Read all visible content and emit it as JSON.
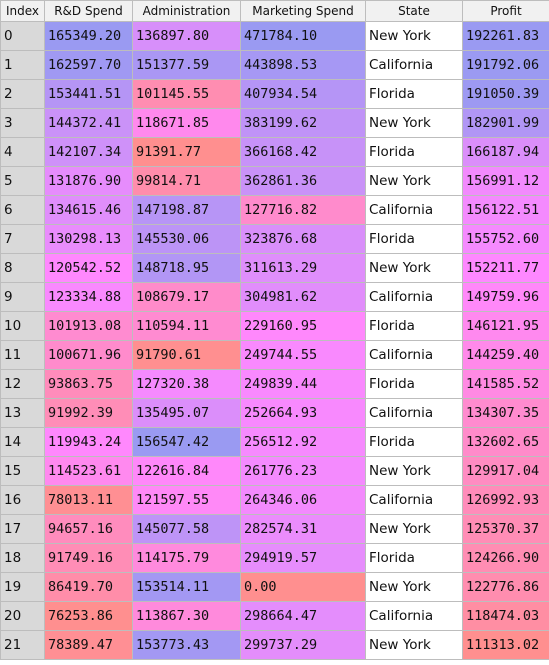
{
  "columns": [
    "Index",
    "R&D Spend",
    "Administration",
    "Marketing Spend",
    "State",
    "Profit"
  ],
  "rows": [
    {
      "index": "0",
      "rd": "165349.20",
      "admin": "136897.80",
      "marketing": "471784.10",
      "state": "New York",
      "profit": "192261.83"
    },
    {
      "index": "1",
      "rd": "162597.70",
      "admin": "151377.59",
      "marketing": "443898.53",
      "state": "California",
      "profit": "191792.06"
    },
    {
      "index": "2",
      "rd": "153441.51",
      "admin": "101145.55",
      "marketing": "407934.54",
      "state": "Florida",
      "profit": "191050.39"
    },
    {
      "index": "3",
      "rd": "144372.41",
      "admin": "118671.85",
      "marketing": "383199.62",
      "state": "New York",
      "profit": "182901.99"
    },
    {
      "index": "4",
      "rd": "142107.34",
      "admin": "91391.77",
      "marketing": "366168.42",
      "state": "Florida",
      "profit": "166187.94"
    },
    {
      "index": "5",
      "rd": "131876.90",
      "admin": "99814.71",
      "marketing": "362861.36",
      "state": "New York",
      "profit": "156991.12"
    },
    {
      "index": "6",
      "rd": "134615.46",
      "admin": "147198.87",
      "marketing": "127716.82",
      "state": "California",
      "profit": "156122.51"
    },
    {
      "index": "7",
      "rd": "130298.13",
      "admin": "145530.06",
      "marketing": "323876.68",
      "state": "Florida",
      "profit": "155752.60"
    },
    {
      "index": "8",
      "rd": "120542.52",
      "admin": "148718.95",
      "marketing": "311613.29",
      "state": "New York",
      "profit": "152211.77"
    },
    {
      "index": "9",
      "rd": "123334.88",
      "admin": "108679.17",
      "marketing": "304981.62",
      "state": "California",
      "profit": "149759.96"
    },
    {
      "index": "10",
      "rd": "101913.08",
      "admin": "110594.11",
      "marketing": "229160.95",
      "state": "Florida",
      "profit": "146121.95"
    },
    {
      "index": "11",
      "rd": "100671.96",
      "admin": "91790.61",
      "marketing": "249744.55",
      "state": "California",
      "profit": "144259.40"
    },
    {
      "index": "12",
      "rd": "93863.75",
      "admin": "127320.38",
      "marketing": "249839.44",
      "state": "Florida",
      "profit": "141585.52"
    },
    {
      "index": "13",
      "rd": "91992.39",
      "admin": "135495.07",
      "marketing": "252664.93",
      "state": "California",
      "profit": "134307.35"
    },
    {
      "index": "14",
      "rd": "119943.24",
      "admin": "156547.42",
      "marketing": "256512.92",
      "state": "Florida",
      "profit": "132602.65"
    },
    {
      "index": "15",
      "rd": "114523.61",
      "admin": "122616.84",
      "marketing": "261776.23",
      "state": "New York",
      "profit": "129917.04"
    },
    {
      "index": "16",
      "rd": "78013.11",
      "admin": "121597.55",
      "marketing": "264346.06",
      "state": "California",
      "profit": "126992.93"
    },
    {
      "index": "17",
      "rd": "94657.16",
      "admin": "145077.58",
      "marketing": "282574.31",
      "state": "New York",
      "profit": "125370.37"
    },
    {
      "index": "18",
      "rd": "91749.16",
      "admin": "114175.79",
      "marketing": "294919.57",
      "state": "Florida",
      "profit": "124266.90"
    },
    {
      "index": "19",
      "rd": "86419.70",
      "admin": "153514.11",
      "marketing": "0.00",
      "state": "New York",
      "profit": "122776.86"
    },
    {
      "index": "20",
      "rd": "76253.86",
      "admin": "113867.30",
      "marketing": "298664.47",
      "state": "California",
      "profit": "118474.03"
    },
    {
      "index": "21",
      "rd": "78389.47",
      "admin": "153773.43",
      "marketing": "299737.29",
      "state": "New York",
      "profit": "111313.02"
    }
  ],
  "colors": {
    "high": "#9a9af2",
    "mid": "#ff88ff",
    "low": "#ff8f8f",
    "index_bg": "#d9d9d9",
    "header_bg": "#f1f1f1"
  }
}
